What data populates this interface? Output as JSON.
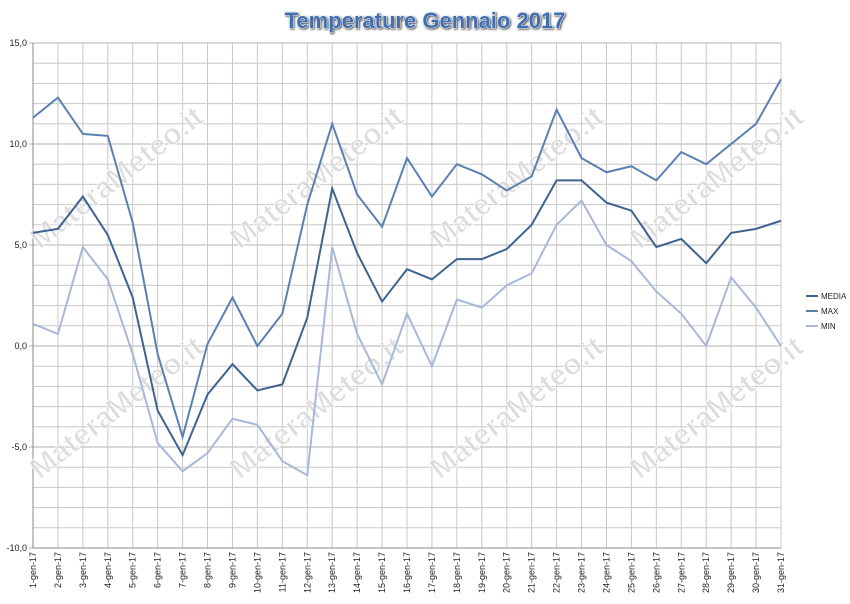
{
  "chart_data": {
    "type": "line",
    "title": "Temperature Gennaio 2017",
    "watermark": "MateraMeteo.it",
    "categories": [
      "1-gen-17",
      "2-gen-17",
      "3-gen-17",
      "4-gen-17",
      "5-gen-17",
      "6-gen-17",
      "7-gen-17",
      "8-gen-17",
      "9-gen-17",
      "10-gen-17",
      "11-gen-17",
      "12-gen-17",
      "13-gen-17",
      "14-gen-17",
      "15-gen-17",
      "16-gen-17",
      "17-gen-17",
      "18-gen-17",
      "19-gen-17",
      "20-gen-17",
      "21-gen-17",
      "22-gen-17",
      "23-gen-17",
      "24-gen-17",
      "25-gen-17",
      "26-gen-17",
      "27-gen-17",
      "28-gen-17",
      "29-gen-17",
      "30-gen-17",
      "31-gen-17"
    ],
    "series": [
      {
        "name": "MEDIA",
        "color": "#3f6390",
        "values": [
          5.6,
          5.8,
          7.4,
          5.5,
          2.4,
          -3.2,
          -5.4,
          -2.4,
          -0.9,
          -2.2,
          -1.9,
          1.4,
          7.8,
          4.6,
          2.2,
          3.8,
          3.3,
          4.3,
          4.3,
          4.8,
          6.0,
          8.2,
          8.2,
          7.1,
          6.7,
          4.9,
          5.3,
          4.1,
          5.6,
          5.8,
          6.2
        ]
      },
      {
        "name": "MAX",
        "color": "#5b81b2",
        "values": [
          11.3,
          12.3,
          10.5,
          10.4,
          6.1,
          -0.4,
          -4.5,
          0.1,
          2.4,
          0.0,
          1.6,
          7.0,
          11.0,
          7.5,
          5.9,
          9.3,
          7.4,
          9.0,
          8.5,
          7.7,
          8.4,
          11.7,
          9.3,
          8.6,
          8.9,
          8.2,
          9.6,
          9.0,
          10.0,
          11.0,
          13.2
        ]
      },
      {
        "name": "MIN",
        "color": "#a7b8d8",
        "values": [
          1.1,
          0.6,
          4.9,
          3.3,
          -0.4,
          -4.8,
          -6.2,
          -5.3,
          -3.6,
          -3.9,
          -5.7,
          -6.4,
          4.9,
          0.6,
          -1.9,
          1.6,
          -1.0,
          2.3,
          1.9,
          3.0,
          3.6,
          6.0,
          7.2,
          5.0,
          4.2,
          2.7,
          1.6,
          0.0,
          3.4,
          1.9,
          0.0
        ]
      }
    ],
    "ylim": [
      -10,
      15
    ],
    "yticks": [
      {
        "value": -10,
        "label": "-10,0"
      },
      {
        "value": -5,
        "label": "-5,0"
      },
      {
        "value": 0,
        "label": "0,0"
      },
      {
        "value": 5,
        "label": "5,0"
      },
      {
        "value": 10,
        "label": "10,0"
      },
      {
        "value": 15,
        "label": "15,0"
      }
    ],
    "minor_yticks": [
      -9,
      -8,
      -7,
      -6,
      -4,
      -3,
      -2,
      -1,
      1,
      2,
      3,
      4,
      6,
      7,
      8,
      9,
      11,
      12,
      13,
      14
    ],
    "grid": true,
    "legend": "right"
  }
}
